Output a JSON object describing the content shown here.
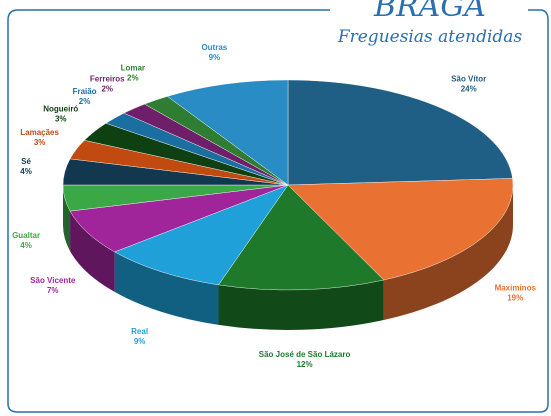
{
  "chart_data": {
    "type": "pie",
    "title": "BRAGA",
    "subtitle": "Freguesias atendidas",
    "categories": [
      "São Vítor",
      "Maximinos",
      "São José de São Lázaro",
      "Real",
      "São Vicente",
      "Gualtar",
      "Sé",
      "Lamaçães",
      "Nogueiró",
      "Fraião",
      "Ferreiros",
      "Lomar",
      "Outras"
    ],
    "values": [
      24,
      19,
      12,
      9,
      7,
      4,
      4,
      3,
      3,
      2,
      2,
      2,
      9
    ],
    "value_labels": [
      "24%",
      "19%",
      "12%",
      "9%",
      "7%",
      "4%",
      "4%",
      "3%",
      "3%",
      "2%",
      "2%",
      "2%",
      "9%"
    ],
    "colors": [
      "#1f5f86",
      "#e97132",
      "#1e7a2a",
      "#1fa0d8",
      "#a0259a",
      "#3aa845",
      "#12384f",
      "#c04a10",
      "#0e4012",
      "#1a6fa0",
      "#6f1f6a",
      "#2e7d32",
      "#2a8cc4"
    ]
  }
}
